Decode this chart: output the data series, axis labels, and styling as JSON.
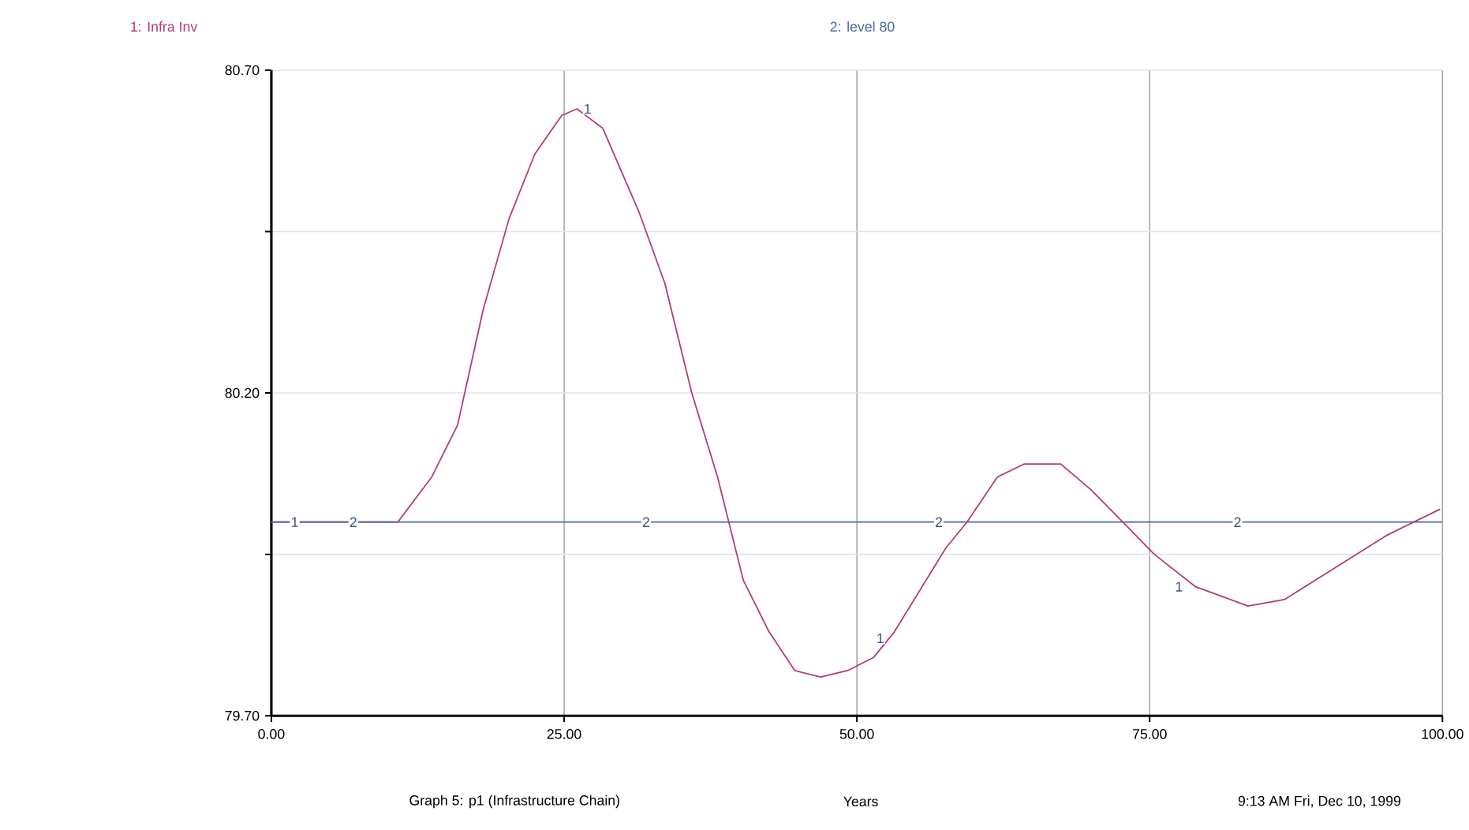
{
  "chart_data": {
    "type": "line",
    "title": "Graph 5: p1 (Infrastructure Chain)",
    "xlabel": "Years",
    "series": [
      {
        "name": "1: Infra Inv",
        "color": "#b03a78",
        "x": [
          0,
          5,
          10.8,
          13.7,
          15.9,
          18.1,
          20.3,
          22.5,
          24.8,
          26.1,
          28.3,
          31.4,
          33.6,
          35.9,
          38.1,
          40.3,
          42.5,
          44.7,
          46.9,
          49.2,
          51.4,
          53.2,
          57.6,
          59.4,
          62.0,
          64.3,
          67.4,
          70.0,
          72.7,
          75.4,
          78.9,
          83.4,
          86.5,
          90.9,
          95.3,
          99.8
        ],
        "values": [
          80.0,
          80.0,
          80.0,
          80.07,
          80.15,
          80.33,
          80.47,
          80.57,
          80.63,
          80.64,
          80.61,
          80.48,
          80.37,
          80.2,
          80.07,
          79.91,
          79.83,
          79.77,
          79.76,
          79.77,
          79.79,
          79.83,
          79.96,
          80.0,
          80.07,
          80.09,
          80.09,
          80.05,
          80.0,
          79.95,
          79.9,
          79.87,
          79.88,
          79.93,
          79.98,
          80.02
        ]
      },
      {
        "name": "2: level 80",
        "color": "#4a6a9e",
        "x": [
          0,
          100
        ],
        "values": [
          80.0,
          80.0
        ]
      }
    ],
    "xlim": [
      0,
      100
    ],
    "xticks": [
      {
        "value": 0,
        "label": "0.00"
      },
      {
        "value": 25,
        "label": "25.00"
      },
      {
        "value": 50,
        "label": "50.00"
      },
      {
        "value": 75,
        "label": "75.00"
      },
      {
        "value": 100,
        "label": "100.00"
      }
    ],
    "ylim": [
      79.7,
      80.7
    ],
    "yticks": [
      {
        "value": 79.7,
        "label": "79.70"
      },
      {
        "value": 79.95,
        "label": null
      },
      {
        "value": 80.2,
        "label": "80.20"
      },
      {
        "value": 80.45,
        "label": null
      },
      {
        "value": 80.7,
        "label": "80.70"
      }
    ],
    "grid": true,
    "legend": "top",
    "annotations": [
      {
        "text": "1",
        "x": 2,
        "y": 80.0
      },
      {
        "text": "2",
        "x": 7,
        "y": 80.0
      },
      {
        "text": "1",
        "x": 27,
        "y": 80.64
      },
      {
        "text": "2",
        "x": 32,
        "y": 80.0
      },
      {
        "text": "1",
        "x": 52,
        "y": 79.82
      },
      {
        "text": "2",
        "x": 57,
        "y": 80.0
      },
      {
        "text": "1",
        "x": 77.5,
        "y": 79.9
      },
      {
        "text": "2",
        "x": 82.5,
        "y": 80.0
      },
      "9:13 AM   Fri, Dec 10, 1999"
    ]
  }
}
